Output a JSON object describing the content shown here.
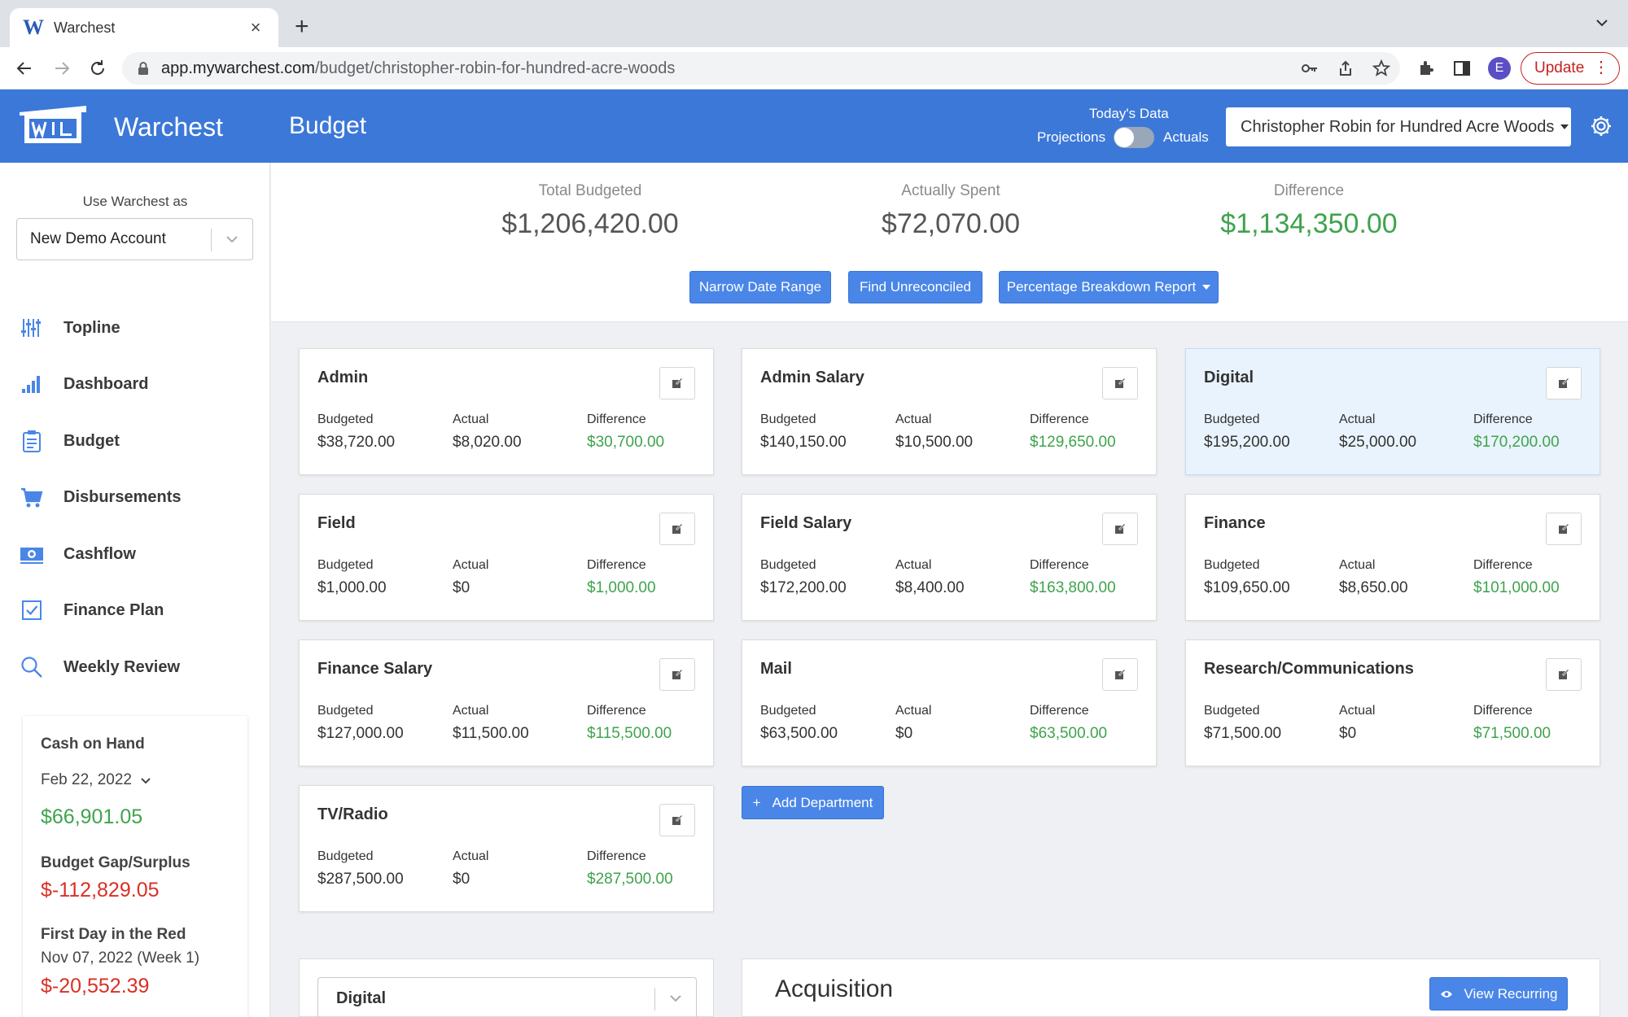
{
  "browser": {
    "tab_title": "Warchest",
    "tab_favicon": "W",
    "url_host": "app.mywarchest.com",
    "url_path": "/budget/christopher-robin-for-hundred-acre-woods",
    "profile_initial": "E",
    "update_label": "Update"
  },
  "header": {
    "brand": "Warchest",
    "page_title": "Budget",
    "todays_data": "Today's Data",
    "projections_label": "Projections",
    "actuals_label": "Actuals",
    "campaign": "Christopher Robin for Hundred Acre Woods",
    "accent_color": "#3c78d8"
  },
  "sidebar": {
    "use_as_label": "Use Warchest as",
    "account": "New Demo Account",
    "nav": [
      {
        "label": "Topline",
        "icon": "sliders-icon"
      },
      {
        "label": "Dashboard",
        "icon": "bar-chart-icon"
      },
      {
        "label": "Budget",
        "icon": "clipboard-icon"
      },
      {
        "label": "Disbursements",
        "icon": "cart-icon"
      },
      {
        "label": "Cashflow",
        "icon": "money-icon"
      },
      {
        "label": "Finance Plan",
        "icon": "checkbox-icon"
      },
      {
        "label": "Weekly Review",
        "icon": "search-icon"
      }
    ],
    "cash": {
      "title": "Cash on Hand",
      "date": "Feb 22, 2022",
      "amount": "$66,901.05",
      "gap_title": "Budget Gap/Surplus",
      "gap_amount": "$-112,829.05",
      "red_title": "First Day in the Red",
      "red_date": "Nov 07, 2022 (Week 1)",
      "red_amount": "$-20,552.39"
    }
  },
  "summary": {
    "total_label": "Total Budgeted",
    "total_value": "$1,206,420.00",
    "spent_label": "Actually Spent",
    "spent_value": "$72,070.00",
    "diff_label": "Difference",
    "diff_value": "$1,134,350.00",
    "btn_narrow": "Narrow Date Range",
    "btn_unreconciled": "Find Unreconciled",
    "btn_report": "Percentage Breakdown Report"
  },
  "labels": {
    "budgeted": "Budgeted",
    "actual": "Actual",
    "difference": "Difference"
  },
  "departments": [
    {
      "name": "Admin",
      "budgeted": "$38,720.00",
      "actual": "$8,020.00",
      "difference": "$30,700.00"
    },
    {
      "name": "Admin Salary",
      "budgeted": "$140,150.00",
      "actual": "$10,500.00",
      "difference": "$129,650.00"
    },
    {
      "name": "Digital",
      "budgeted": "$195,200.00",
      "actual": "$25,000.00",
      "difference": "$170,200.00"
    },
    {
      "name": "Field",
      "budgeted": "$1,000.00",
      "actual": "$0",
      "difference": "$1,000.00"
    },
    {
      "name": "Field Salary",
      "budgeted": "$172,200.00",
      "actual": "$8,400.00",
      "difference": "$163,800.00"
    },
    {
      "name": "Finance",
      "budgeted": "$109,650.00",
      "actual": "$8,650.00",
      "difference": "$101,000.00"
    },
    {
      "name": "Finance Salary",
      "budgeted": "$127,000.00",
      "actual": "$11,500.00",
      "difference": "$115,500.00"
    },
    {
      "name": "Mail",
      "budgeted": "$63,500.00",
      "actual": "$0",
      "difference": "$63,500.00"
    },
    {
      "name": "Research/Communications",
      "budgeted": "$71,500.00",
      "actual": "$0",
      "difference": "$71,500.00"
    },
    {
      "name": "TV/Radio",
      "budgeted": "$287,500.00",
      "actual": "$0",
      "difference": "$287,500.00"
    }
  ],
  "add_department_label": "Add Department",
  "add_department_prefix": "+",
  "bottom": {
    "dept_select": "Digital",
    "acquisition_title": "Acquisition",
    "view_recurring": "View Recurring"
  }
}
